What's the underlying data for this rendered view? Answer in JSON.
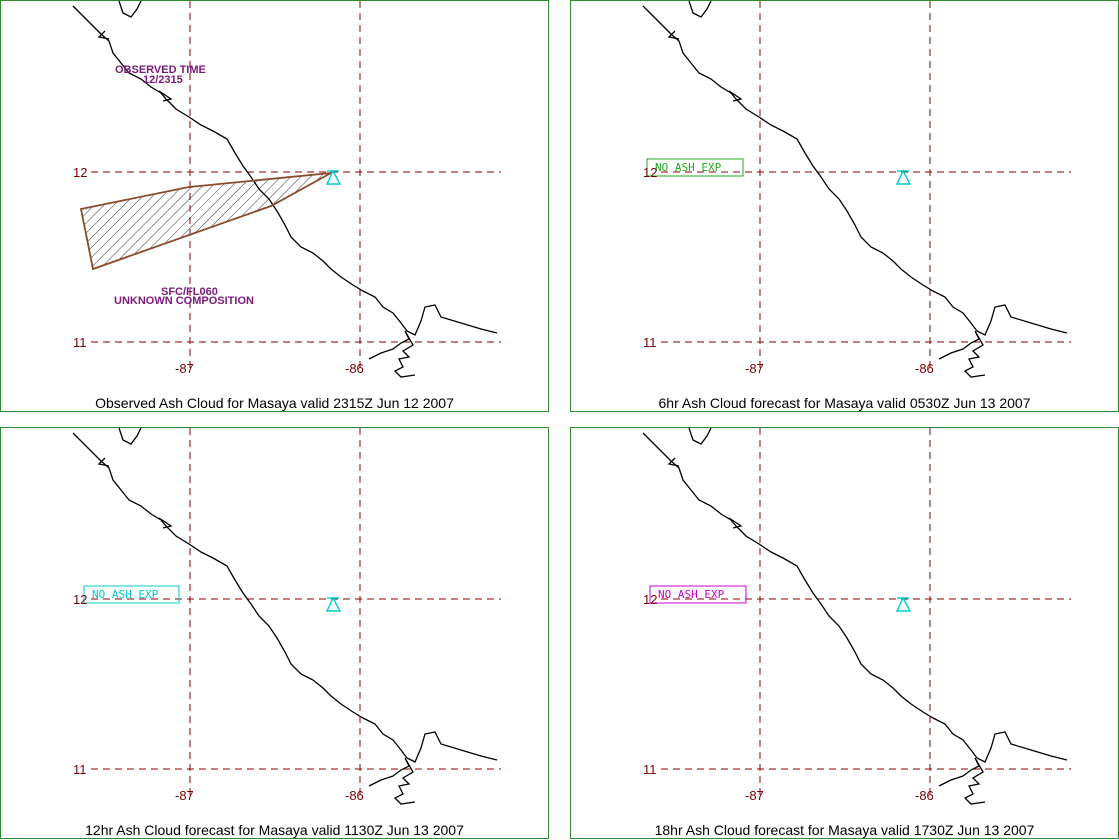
{
  "panels": [
    {
      "caption": "Observed Ash Cloud for Masaya valid 2315Z Jun 12 2007",
      "lat_labels": [
        "12",
        "11"
      ],
      "lon_labels": [
        "-87",
        "-86"
      ],
      "observed_time_label": "OBSERVED TIME",
      "observed_time_value": "12/2315",
      "level_label": "SFC/FL060",
      "composition_label": "UNKNOWN COMPOSITION",
      "ash_polygon_color": "#8b4a2b"
    },
    {
      "caption": "6hr Ash Cloud forecast for Masaya valid 0530Z Jun 13 2007",
      "lat_labels": [
        "12",
        "11"
      ],
      "lon_labels": [
        "-87",
        "-86"
      ],
      "box_text": "NO ASH EXP",
      "box_color": "#22aa22"
    },
    {
      "caption": "12hr Ash Cloud forecast for Masaya valid 1130Z Jun 13 2007",
      "lat_labels": [
        "12",
        "11"
      ],
      "lon_labels": [
        "-87",
        "-86"
      ],
      "box_text": "NO ASH EXP",
      "box_color": "#00cccc"
    },
    {
      "caption": "18hr Ash Cloud forecast for Masaya valid 1730Z Jun 13 2007",
      "lat_labels": [
        "12",
        "11"
      ],
      "lon_labels": [
        "-87",
        "-86"
      ],
      "box_text": "NO ASH EXP",
      "box_color": "#cc00cc"
    }
  ],
  "volcano_icon": "volcano-triangle-icon",
  "volcano_color": "#00cccc",
  "grid_color": "#8b0000",
  "coast_color": "#000000"
}
